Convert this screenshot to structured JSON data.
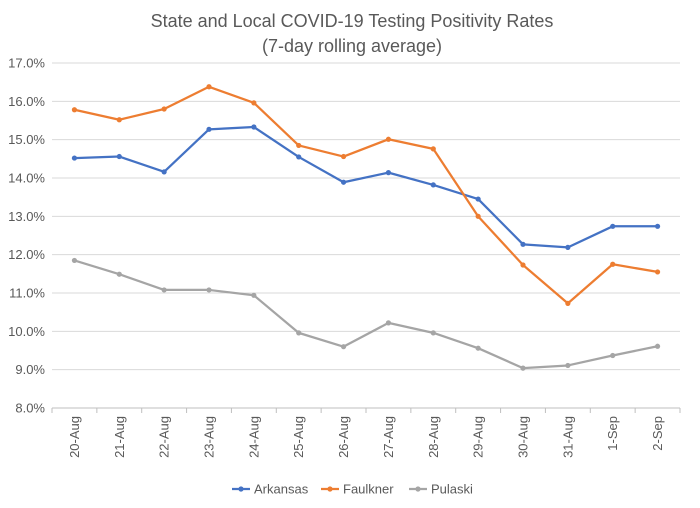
{
  "chart_data": {
    "type": "line",
    "title": "State and Local COVID-19 Testing Positivity Rates",
    "subtitle": "(7-day rolling average)",
    "xlabel": "",
    "ylabel": "",
    "ylim": [
      8.0,
      17.0
    ],
    "ytick_step": 1.0,
    "ytick_labels": [
      "8.0%",
      "9.0%",
      "10.0%",
      "11.0%",
      "12.0%",
      "13.0%",
      "14.0%",
      "15.0%",
      "16.0%",
      "17.0%"
    ],
    "grid": true,
    "legend_position": "bottom",
    "categories": [
      "20-Aug",
      "21-Aug",
      "22-Aug",
      "23-Aug",
      "24-Aug",
      "25-Aug",
      "26-Aug",
      "27-Aug",
      "28-Aug",
      "29-Aug",
      "30-Aug",
      "31-Aug",
      "1-Sep",
      "2-Sep"
    ],
    "series": [
      {
        "name": "Arkansas",
        "color": "#4472C4",
        "values": [
          14.52,
          14.56,
          14.16,
          15.27,
          15.33,
          14.55,
          13.89,
          14.14,
          13.82,
          13.45,
          12.27,
          12.19,
          12.74,
          12.74
        ]
      },
      {
        "name": "Faulkner",
        "color": "#ED7D31",
        "values": [
          15.78,
          15.52,
          15.8,
          16.38,
          15.96,
          14.85,
          14.56,
          15.01,
          14.76,
          13.0,
          11.73,
          10.73,
          11.75,
          11.55
        ]
      },
      {
        "name": "Pulaski",
        "color": "#A5A5A5",
        "values": [
          11.85,
          11.49,
          11.08,
          11.08,
          10.94,
          9.96,
          9.6,
          10.22,
          9.96,
          9.56,
          9.04,
          9.11,
          9.37,
          9.61
        ]
      }
    ]
  },
  "styles": {
    "grid_color": "#D9D9D9",
    "axis_color": "#BFBFBF",
    "text_color": "#595959"
  }
}
